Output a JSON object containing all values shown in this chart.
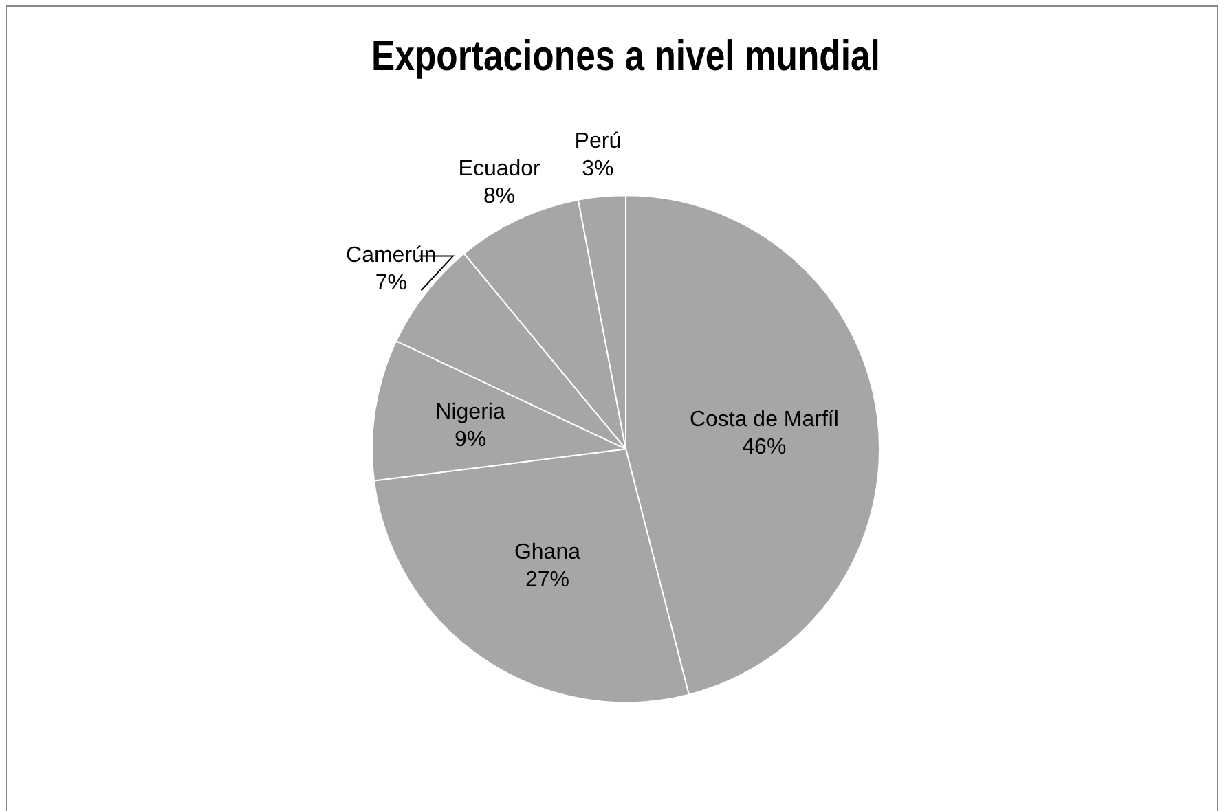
{
  "chart_data": {
    "type": "pie",
    "title": "Exportaciones a nivel mundial",
    "categories": [
      "Costa de Marfíl",
      "Ghana",
      "Nigeria",
      "Camerún",
      "Ecuador",
      "Perú"
    ],
    "values": [
      46,
      27,
      9,
      7,
      8,
      3
    ],
    "value_labels": [
      "46%",
      "27%",
      "9%",
      "7%",
      "8%",
      "3%"
    ],
    "colors": [
      "#a6a6a6",
      "#a6a6a6",
      "#a6a6a6",
      "#a6a6a6",
      "#a6a6a6",
      "#a6a6a6"
    ],
    "legend": false
  }
}
